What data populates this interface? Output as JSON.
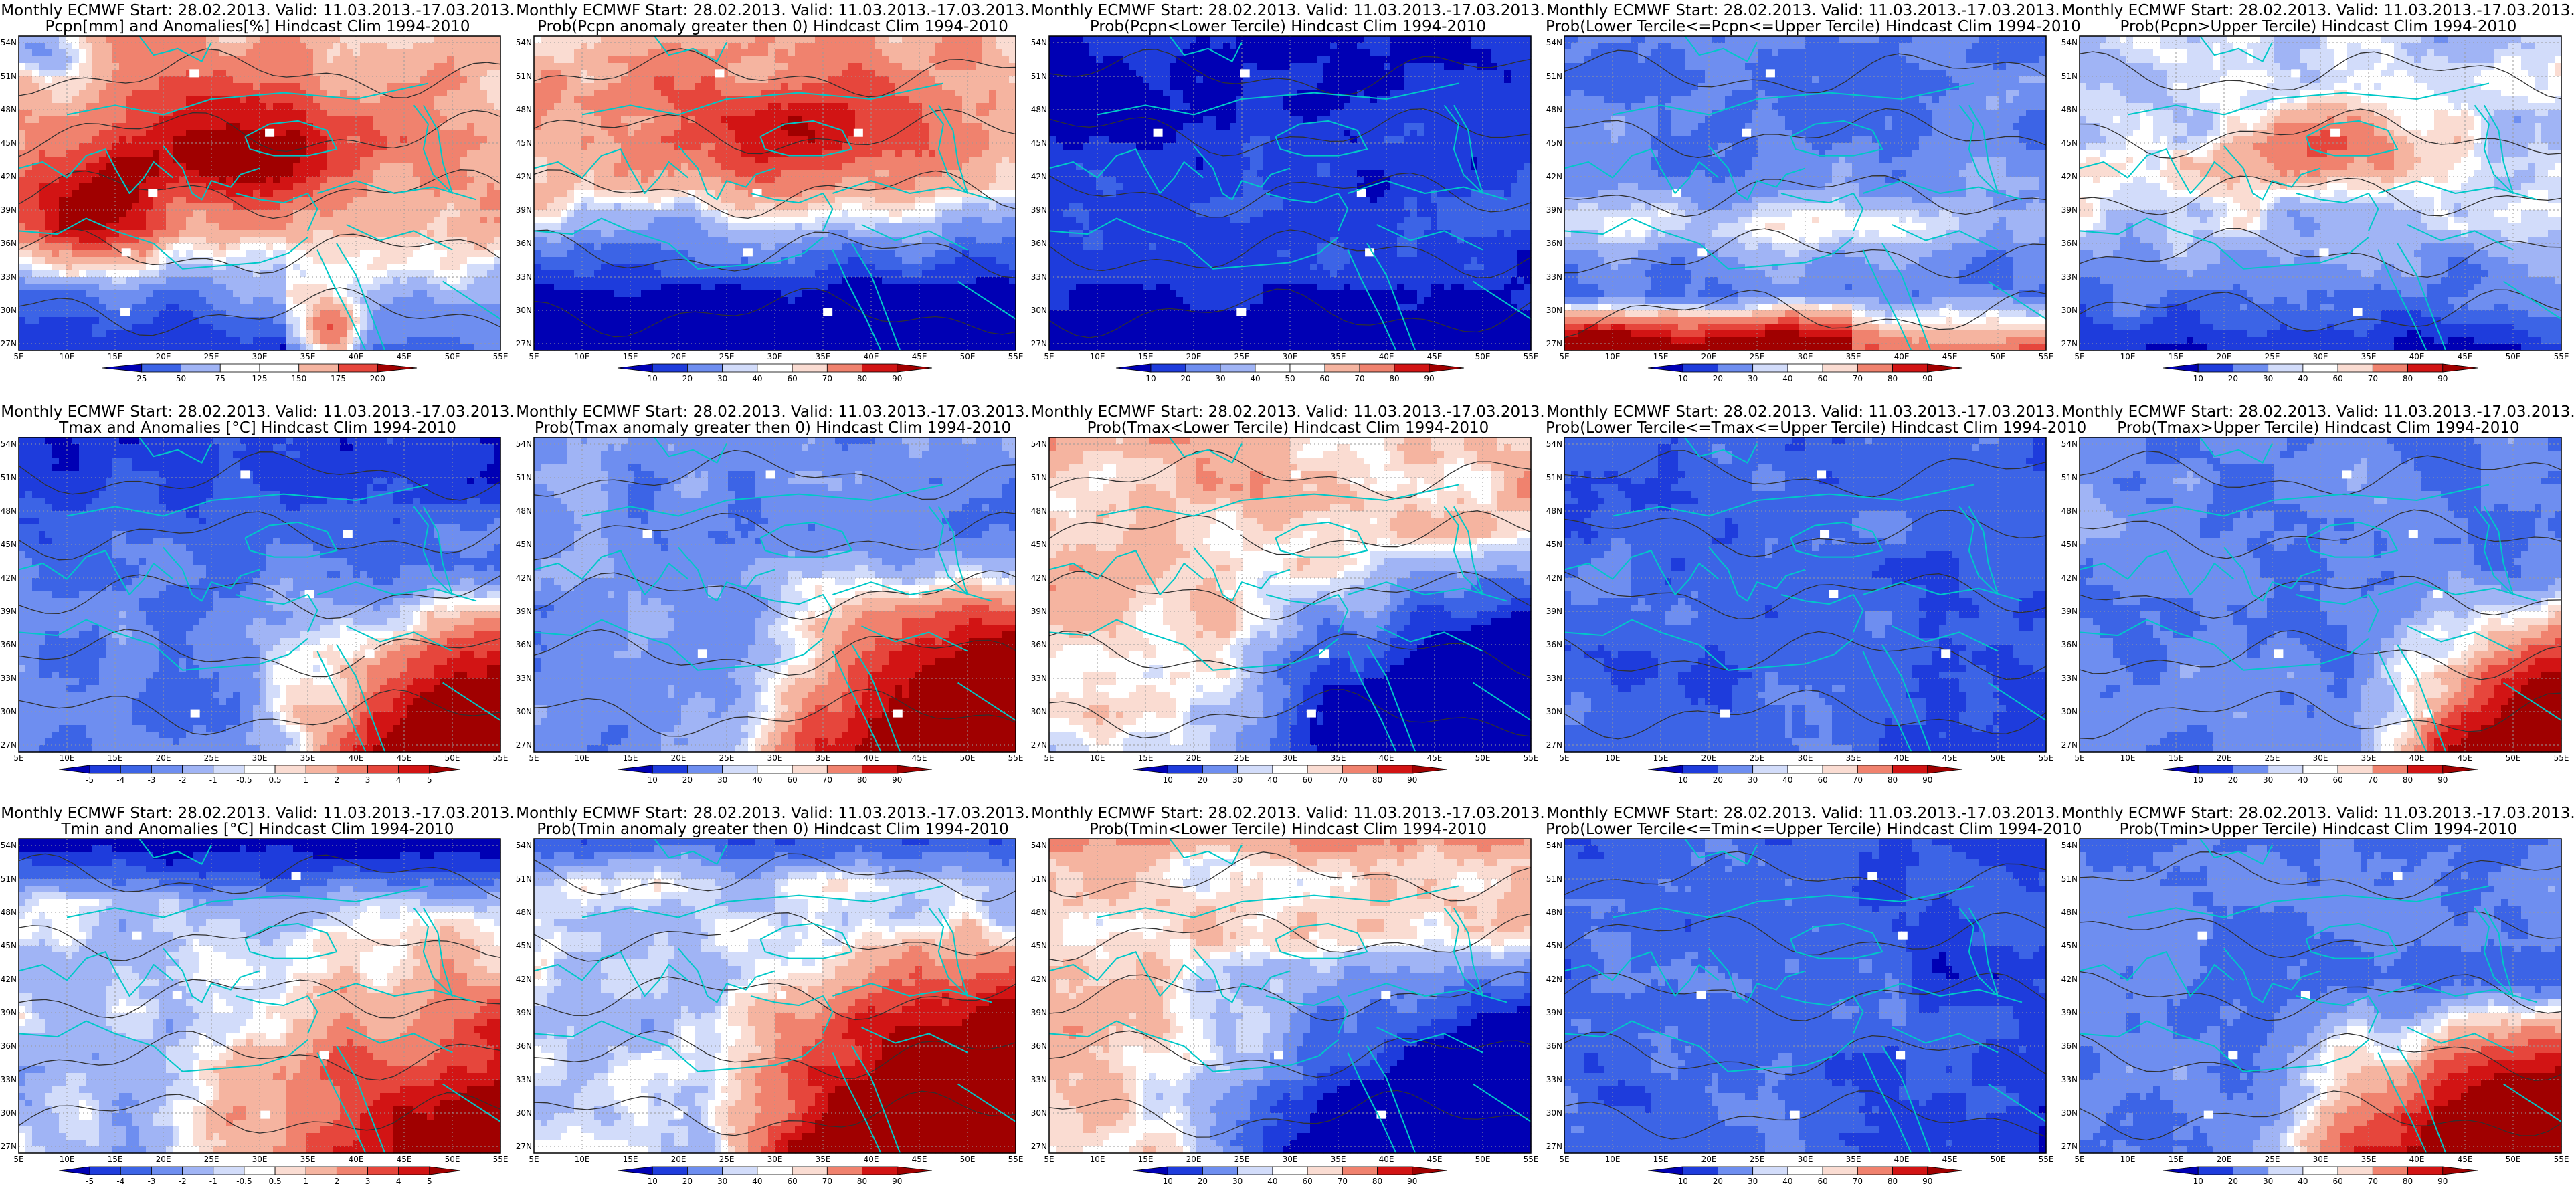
{
  "lat_labels": [
    "54N",
    "51N",
    "48N",
    "45N",
    "42N",
    "39N",
    "36N",
    "33N",
    "30N",
    "27N"
  ],
  "lon_labels": [
    "5E",
    "10E",
    "15E",
    "20E",
    "25E",
    "30E",
    "35E",
    "40E",
    "45E",
    "50E",
    "55E"
  ],
  "colors": {
    "coast": "#00c8c8",
    "contour": "#303030",
    "blues": [
      "#0000b4",
      "#1e3cdc",
      "#3c64e6",
      "#6e8ef0",
      "#a0b4f5",
      "#d2dcfa"
    ],
    "reds": [
      "#fadcd2",
      "#f5b4a0",
      "#f0826e",
      "#e6463c",
      "#d21414",
      "#a00000"
    ]
  },
  "rows": [
    {
      "panels": [
        {
          "title1": "Monthly ECMWF Start: 28.02.2013. Valid: 11.03.2013.-17.03.2013.",
          "title2": "Pcpn[mm] and Anomalies[%] Hindcast Clim 1994-2010",
          "colorbar": [
            "25",
            "50",
            "75",
            "125",
            "150",
            "175",
            "200"
          ],
          "pattern": "pcpn_anom"
        },
        {
          "title1": "Monthly ECMWF Start: 28.02.2013. Valid: 11.03.2013.-17.03.2013.",
          "title2": "Prob(Pcpn anomaly greater then 0) Hindcast Clim 1994-2010",
          "colorbar": [
            "10",
            "20",
            "30",
            "40",
            "60",
            "70",
            "80",
            "90"
          ],
          "pattern": "pcpn_prob"
        },
        {
          "title1": "Monthly ECMWF Start: 28.02.2013. Valid: 11.03.2013.-17.03.2013.",
          "title2": "Prob(Pcpn<Lower Tercile) Hindcast Clim 1994-2010",
          "colorbar": [
            "10",
            "20",
            "30",
            "40",
            "50",
            "60",
            "70",
            "80",
            "90"
          ],
          "pattern": "pcpn_lower"
        },
        {
          "title1": "Monthly ECMWF Start: 28.02.2013. Valid: 11.03.2013.-17.03.2013.",
          "title2": "Prob(Lower Tercile<=Pcpn<=Upper Tercile) Hindcast Clim 1994-2010",
          "colorbar": [
            "10",
            "20",
            "30",
            "40",
            "60",
            "70",
            "80",
            "90"
          ],
          "pattern": "pcpn_middle"
        },
        {
          "title1": "Monthly ECMWF Start: 28.02.2013. Valid: 11.03.2013.-17.03.2013.",
          "title2": "Prob(Pcpn>Upper Tercile) Hindcast Clim 1994-2010",
          "colorbar": [
            "10",
            "20",
            "30",
            "40",
            "60",
            "70",
            "80",
            "90"
          ],
          "pattern": "pcpn_upper"
        }
      ]
    },
    {
      "panels": [
        {
          "title1": "Monthly ECMWF Start: 28.02.2013. Valid: 11.03.2013.-17.03.2013.",
          "title2": "Tmax and Anomalies [°C] Hindcast Clim 1994-2010",
          "colorbar": [
            "-5",
            "-4",
            "-3",
            "-2",
            "-1",
            "-0.5",
            "0.5",
            "1",
            "2",
            "3",
            "4",
            "5"
          ],
          "pattern": "tmax_anom"
        },
        {
          "title1": "Monthly ECMWF Start: 28.02.2013. Valid: 11.03.2013.-17.03.2013.",
          "title2": "Prob(Tmax anomaly greater then 0) Hindcast Clim 1994-2010",
          "colorbar": [
            "10",
            "20",
            "30",
            "40",
            "60",
            "70",
            "80",
            "90"
          ],
          "pattern": "tmax_prob"
        },
        {
          "title1": "Monthly ECMWF Start: 28.02.2013. Valid: 11.03.2013.-17.03.2013.",
          "title2": "Prob(Tmax<Lower Tercile) Hindcast Clim 1994-2010",
          "colorbar": [
            "10",
            "20",
            "30",
            "40",
            "60",
            "70",
            "80",
            "90"
          ],
          "pattern": "tmax_lower"
        },
        {
          "title1": "Monthly ECMWF Start: 28.02.2013. Valid: 11.03.2013.-17.03.2013.",
          "title2": "Prob(Lower Tercile<=Tmax<=Upper Tercile) Hindcast Clim 1994-2010",
          "colorbar": [
            "10",
            "20",
            "30",
            "40",
            "60",
            "70",
            "80",
            "90"
          ],
          "pattern": "tmax_middle"
        },
        {
          "title1": "Monthly ECMWF Start: 28.02.2013. Valid: 11.03.2013.-17.03.2013.",
          "title2": "Prob(Tmax>Upper Tercile) Hindcast Clim 1994-2010",
          "colorbar": [
            "10",
            "20",
            "30",
            "40",
            "60",
            "70",
            "80",
            "90"
          ],
          "pattern": "tmax_upper"
        }
      ]
    },
    {
      "panels": [
        {
          "title1": "Monthly ECMWF Start: 28.02.2013. Valid: 11.03.2013.-17.03.2013.",
          "title2": "Tmin and Anomalies [°C] Hindcast Clim 1994-2010",
          "colorbar": [
            "-5",
            "-4",
            "-3",
            "-2",
            "-1",
            "-0.5",
            "0.5",
            "1",
            "2",
            "3",
            "4",
            "5"
          ],
          "pattern": "tmin_anom"
        },
        {
          "title1": "Monthly ECMWF Start: 28.02.2013. Valid: 11.03.2013.-17.03.2013.",
          "title2": "Prob(Tmin anomaly greater then 0) Hindcast Clim 1994-2010",
          "colorbar": [
            "10",
            "20",
            "30",
            "40",
            "60",
            "70",
            "80",
            "90"
          ],
          "pattern": "tmin_prob"
        },
        {
          "title1": "Monthly ECMWF Start: 28.02.2013. Valid: 11.03.2013.-17.03.2013.",
          "title2": "Prob(Tmin<Lower Tercile) Hindcast Clim 1994-2010",
          "colorbar": [
            "10",
            "20",
            "30",
            "40",
            "60",
            "70",
            "80",
            "90"
          ],
          "pattern": "tmin_lower"
        },
        {
          "title1": "Monthly ECMWF Start: 28.02.2013. Valid: 11.03.2013.-17.03.2013.",
          "title2": "Prob(Lower Tercile<=Tmin<=Upper Tercile) Hindcast Clim 1994-2010",
          "colorbar": [
            "10",
            "20",
            "30",
            "40",
            "60",
            "70",
            "80",
            "90"
          ],
          "pattern": "tmin_middle"
        },
        {
          "title1": "Monthly ECMWF Start: 28.02.2013. Valid: 11.03.2013.-17.03.2013.",
          "title2": "Prob(Tmin>Upper Tercile) Hindcast Clim 1994-2010",
          "colorbar": [
            "10",
            "20",
            "30",
            "40",
            "60",
            "70",
            "80",
            "90"
          ],
          "pattern": "tmin_upper"
        }
      ]
    }
  ]
}
